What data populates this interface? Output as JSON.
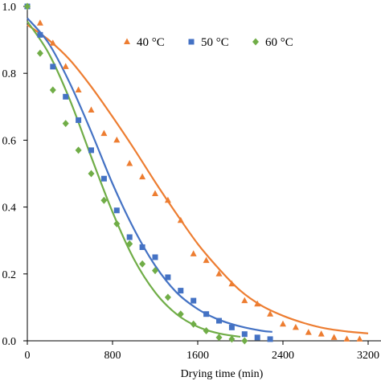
{
  "chart_data": {
    "type": "scatter",
    "xlabel": "Drying time (min)",
    "ylabel": "",
    "xlim": [
      0,
      3200
    ],
    "ylim": [
      0,
      1.0
    ],
    "x_ticks": [
      "0",
      "800",
      "1600",
      "2400",
      "3200"
    ],
    "y_ticks": [
      "0.0",
      "0.2",
      "0.4",
      "0.6",
      "0.8",
      "1.0"
    ],
    "grid": false,
    "legend_position": "top-right",
    "series": [
      {
        "name": "40 °C",
        "color": "#ED7D31",
        "marker": "triangle",
        "x": [
          0,
          120,
          240,
          360,
          480,
          600,
          720,
          840,
          960,
          1080,
          1200,
          1320,
          1440,
          1560,
          1680,
          1800,
          1920,
          2040,
          2160,
          2280,
          2400,
          2520,
          2640,
          2760,
          2880,
          3000,
          3120
        ],
        "y": [
          1.0,
          0.95,
          0.89,
          0.82,
          0.75,
          0.69,
          0.62,
          0.6,
          0.53,
          0.49,
          0.44,
          0.42,
          0.36,
          0.26,
          0.24,
          0.2,
          0.17,
          0.12,
          0.11,
          0.08,
          0.05,
          0.04,
          0.025,
          0.02,
          0.01,
          0.005,
          0.005
        ],
        "fit": {
          "x": [
            0,
            200,
            400,
            600,
            800,
            1000,
            1200,
            1400,
            1600,
            1800,
            2000,
            2200,
            2400,
            2600,
            2800,
            3000,
            3200
          ],
          "y": [
            0.945,
            0.9,
            0.84,
            0.76,
            0.67,
            0.575,
            0.475,
            0.38,
            0.29,
            0.215,
            0.15,
            0.105,
            0.075,
            0.053,
            0.037,
            0.028,
            0.022
          ]
        }
      },
      {
        "name": "50 °C",
        "color": "#4472C4",
        "marker": "square",
        "x": [
          0,
          120,
          240,
          360,
          480,
          600,
          720,
          840,
          960,
          1080,
          1200,
          1320,
          1440,
          1560,
          1680,
          1800,
          1920,
          2040,
          2160,
          2280
        ],
        "y": [
          1.0,
          0.915,
          0.82,
          0.73,
          0.66,
          0.57,
          0.485,
          0.39,
          0.31,
          0.28,
          0.25,
          0.19,
          0.15,
          0.12,
          0.08,
          0.06,
          0.04,
          0.02,
          0.01,
          0.005
        ],
        "fit": {
          "x": [
            0,
            200,
            400,
            600,
            800,
            1000,
            1200,
            1400,
            1600,
            1800,
            2000,
            2200,
            2300
          ],
          "y": [
            0.965,
            0.89,
            0.77,
            0.625,
            0.47,
            0.335,
            0.225,
            0.145,
            0.095,
            0.063,
            0.043,
            0.03,
            0.027
          ]
        }
      },
      {
        "name": "60 °C",
        "color": "#70AD47",
        "marker": "diamond",
        "x": [
          0,
          120,
          240,
          360,
          480,
          600,
          720,
          840,
          960,
          1080,
          1200,
          1320,
          1440,
          1560,
          1680,
          1800,
          1920,
          2040
        ],
        "y": [
          1.0,
          0.86,
          0.75,
          0.65,
          0.57,
          0.5,
          0.42,
          0.35,
          0.29,
          0.23,
          0.21,
          0.13,
          0.08,
          0.05,
          0.03,
          0.01,
          0.005,
          0.0
        ],
        "fit": {
          "x": [
            0,
            200,
            400,
            600,
            800,
            1000,
            1200,
            1400,
            1600,
            1800,
            2000
          ],
          "y": [
            0.955,
            0.86,
            0.72,
            0.55,
            0.385,
            0.245,
            0.145,
            0.08,
            0.042,
            0.022,
            0.012
          ]
        }
      }
    ]
  }
}
